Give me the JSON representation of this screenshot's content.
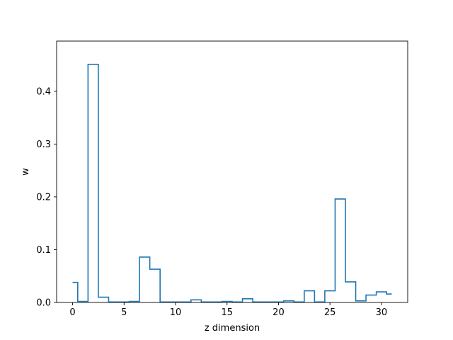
{
  "chart_data": {
    "type": "line",
    "style": "step histogram",
    "title": "",
    "xlabel": "z dimension",
    "ylabel": "w",
    "xlim": [
      -1.55,
      32.55
    ],
    "ylim": [
      0,
      0.495
    ],
    "xticks": [
      0,
      5,
      10,
      15,
      20,
      25,
      30
    ],
    "yticks": [
      0.0,
      0.1,
      0.2,
      0.3,
      0.4
    ],
    "ytick_labels": [
      "0.0",
      "0.1",
      "0.2",
      "0.3",
      "0.4"
    ],
    "grid": false,
    "legend": "none",
    "line_color": "#1f77b4",
    "series": [
      {
        "x": [
          0,
          1,
          2,
          3,
          4,
          5,
          6,
          7,
          8,
          9,
          10,
          11,
          12,
          13,
          14,
          15,
          16,
          17,
          18,
          19,
          20,
          21,
          22,
          23,
          24,
          25,
          26,
          27,
          28,
          29,
          30,
          31
        ],
        "values": [
          0.038,
          0.002,
          0.451,
          0.01,
          0.001,
          0.001,
          0.002,
          0.086,
          0.063,
          0.001,
          0.001,
          0.001,
          0.005,
          0.001,
          0.001,
          0.002,
          0.001,
          0.007,
          0.001,
          0.001,
          0.001,
          0.003,
          0.001,
          0.022,
          0.001,
          0.022,
          0.196,
          0.039,
          0.003,
          0.014,
          0.02,
          0.016
        ]
      }
    ]
  }
}
